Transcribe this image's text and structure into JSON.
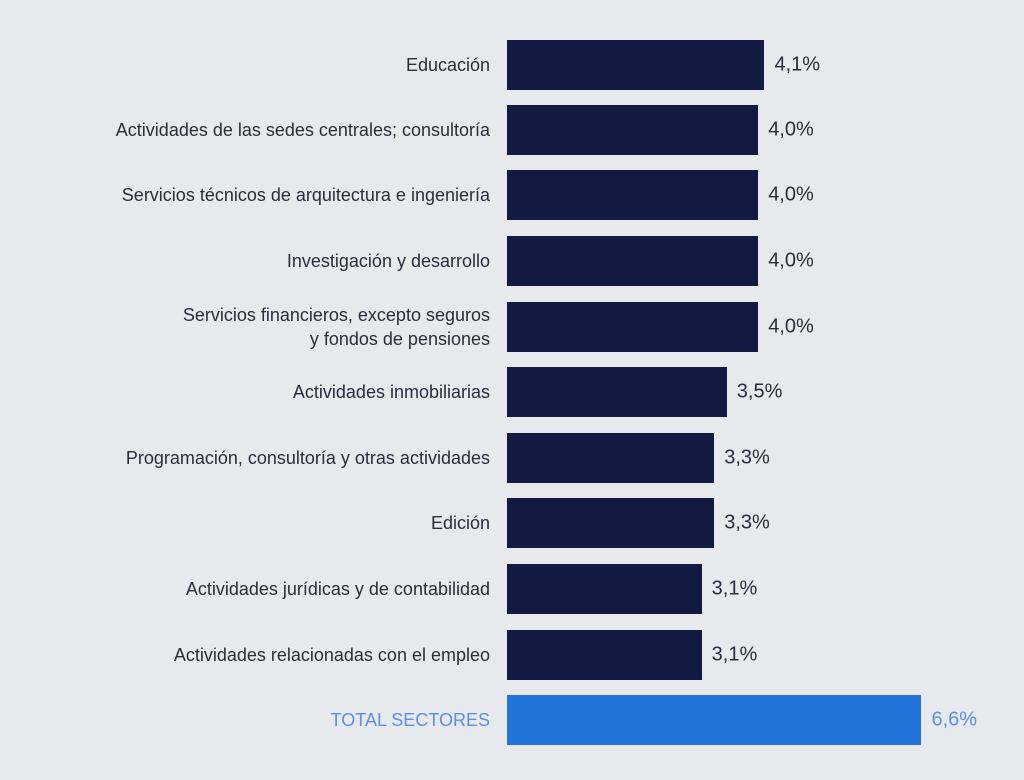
{
  "chart_data": {
    "type": "bar",
    "orientation": "horizontal",
    "categories": [
      "Educación",
      "Actividades de las sedes centrales; consultoría",
      "Servicios técnicos de arquitectura e ingeniería",
      "Investigación y desarrollo",
      "Servicios financieros, excepto seguros y fondos de pensiones",
      "Actividades inmobiliarias",
      "Programación, consultoría y otras actividades",
      "Edición",
      "Actividades jurídicas y de contabilidad",
      "Actividades relacionadas con el empleo",
      "TOTAL SECTORES"
    ],
    "values": [
      4.1,
      4.0,
      4.0,
      4.0,
      4.0,
      3.5,
      3.3,
      3.3,
      3.1,
      3.1,
      6.6
    ],
    "data_labels": [
      "4,1%",
      "4,0%",
      "4,0%",
      "4,0%",
      "4,0%",
      "3,5%",
      "3,3%",
      "3,3%",
      "3,1%",
      "3,1%",
      "6,6%"
    ],
    "highlight_index": 10,
    "colors": {
      "bar": "#121a42",
      "highlight_bar": "#2274d8",
      "highlight_text": "#5b8fe0",
      "background": "#e8e9ed"
    },
    "grid": false,
    "legend": "none",
    "title": "",
    "xlabel": "",
    "ylabel": ""
  }
}
